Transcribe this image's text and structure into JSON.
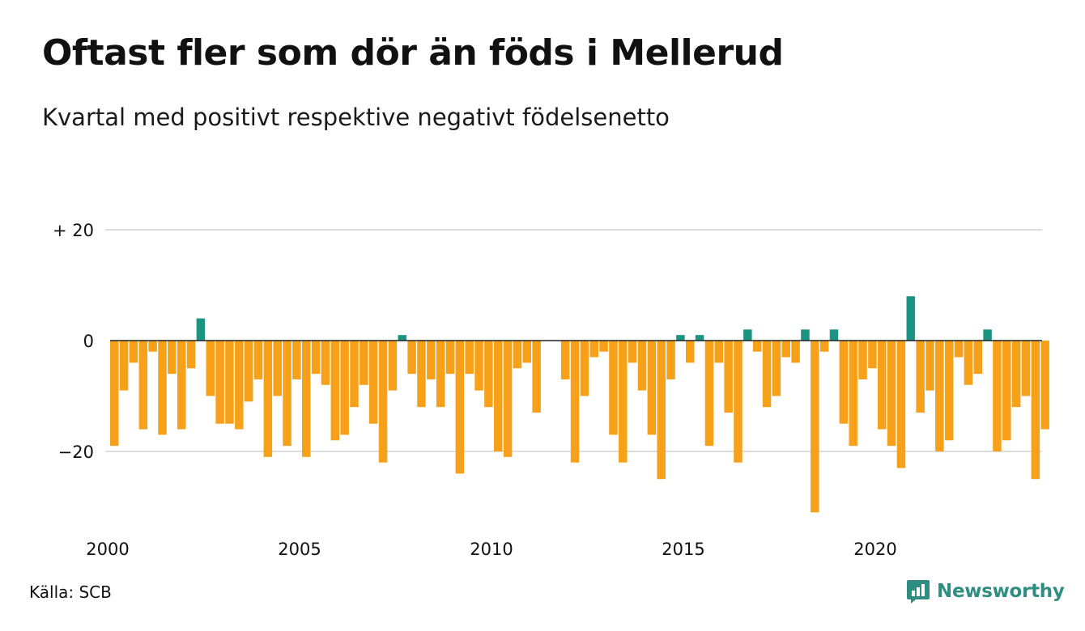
{
  "header": {
    "title": "Oftast fler som dör än föds i Mellerud",
    "subtitle": "Kvartal med positivt respektive negativt födelsenetto"
  },
  "footer": {
    "source": "Källa: SCB",
    "brand": "Newsworthy",
    "brand_icon": "newsworthy-logo-icon"
  },
  "colors": {
    "negative": "#f7a11a",
    "positive": "#1b9484",
    "grid": "#dddddd",
    "zero_line": "#222222",
    "brand": "#2f8d82"
  },
  "chart_data": {
    "type": "bar",
    "title": "Oftast fler som dör än föds i Mellerud",
    "subtitle": "Kvartal med positivt respektive negativt födelsenetto",
    "xlabel": "",
    "ylabel": "",
    "x_start": "2000 Q1",
    "x_tick_labels": [
      "2000",
      "2005",
      "2010",
      "2015",
      "2020"
    ],
    "y_tick_labels": [
      "+ 20",
      "0",
      "−20"
    ],
    "y_ticks": [
      20,
      0,
      -20
    ],
    "ylim": [
      -31,
      20
    ],
    "grid": true,
    "values": [
      -19,
      -9,
      -4,
      -16,
      -2,
      -17,
      -6,
      -16,
      -5,
      4,
      -10,
      -15,
      -15,
      -16,
      -11,
      -7,
      -21,
      -10,
      -19,
      -7,
      -21,
      -6,
      -8,
      -18,
      -17,
      -12,
      -8,
      -15,
      -22,
      -9,
      1,
      -6,
      -12,
      -7,
      -12,
      -6,
      -24,
      -6,
      -9,
      -12,
      -20,
      -21,
      -5,
      -4,
      -13,
      0,
      0,
      -7,
      -22,
      -10,
      -3,
      -2,
      -17,
      -22,
      -4,
      -9,
      -17,
      -25,
      -7,
      1,
      -4,
      1,
      -19,
      -4,
      -13,
      -22,
      2,
      -2,
      -12,
      -10,
      -3,
      -4,
      2,
      -31,
      -2,
      2,
      -15,
      -19,
      -7,
      -5,
      -16,
      -19,
      -23,
      8,
      -13,
      -9,
      -20,
      -18,
      -3,
      -8,
      -6,
      2,
      -20,
      -18,
      -12,
      -10,
      -25,
      -16
    ]
  }
}
